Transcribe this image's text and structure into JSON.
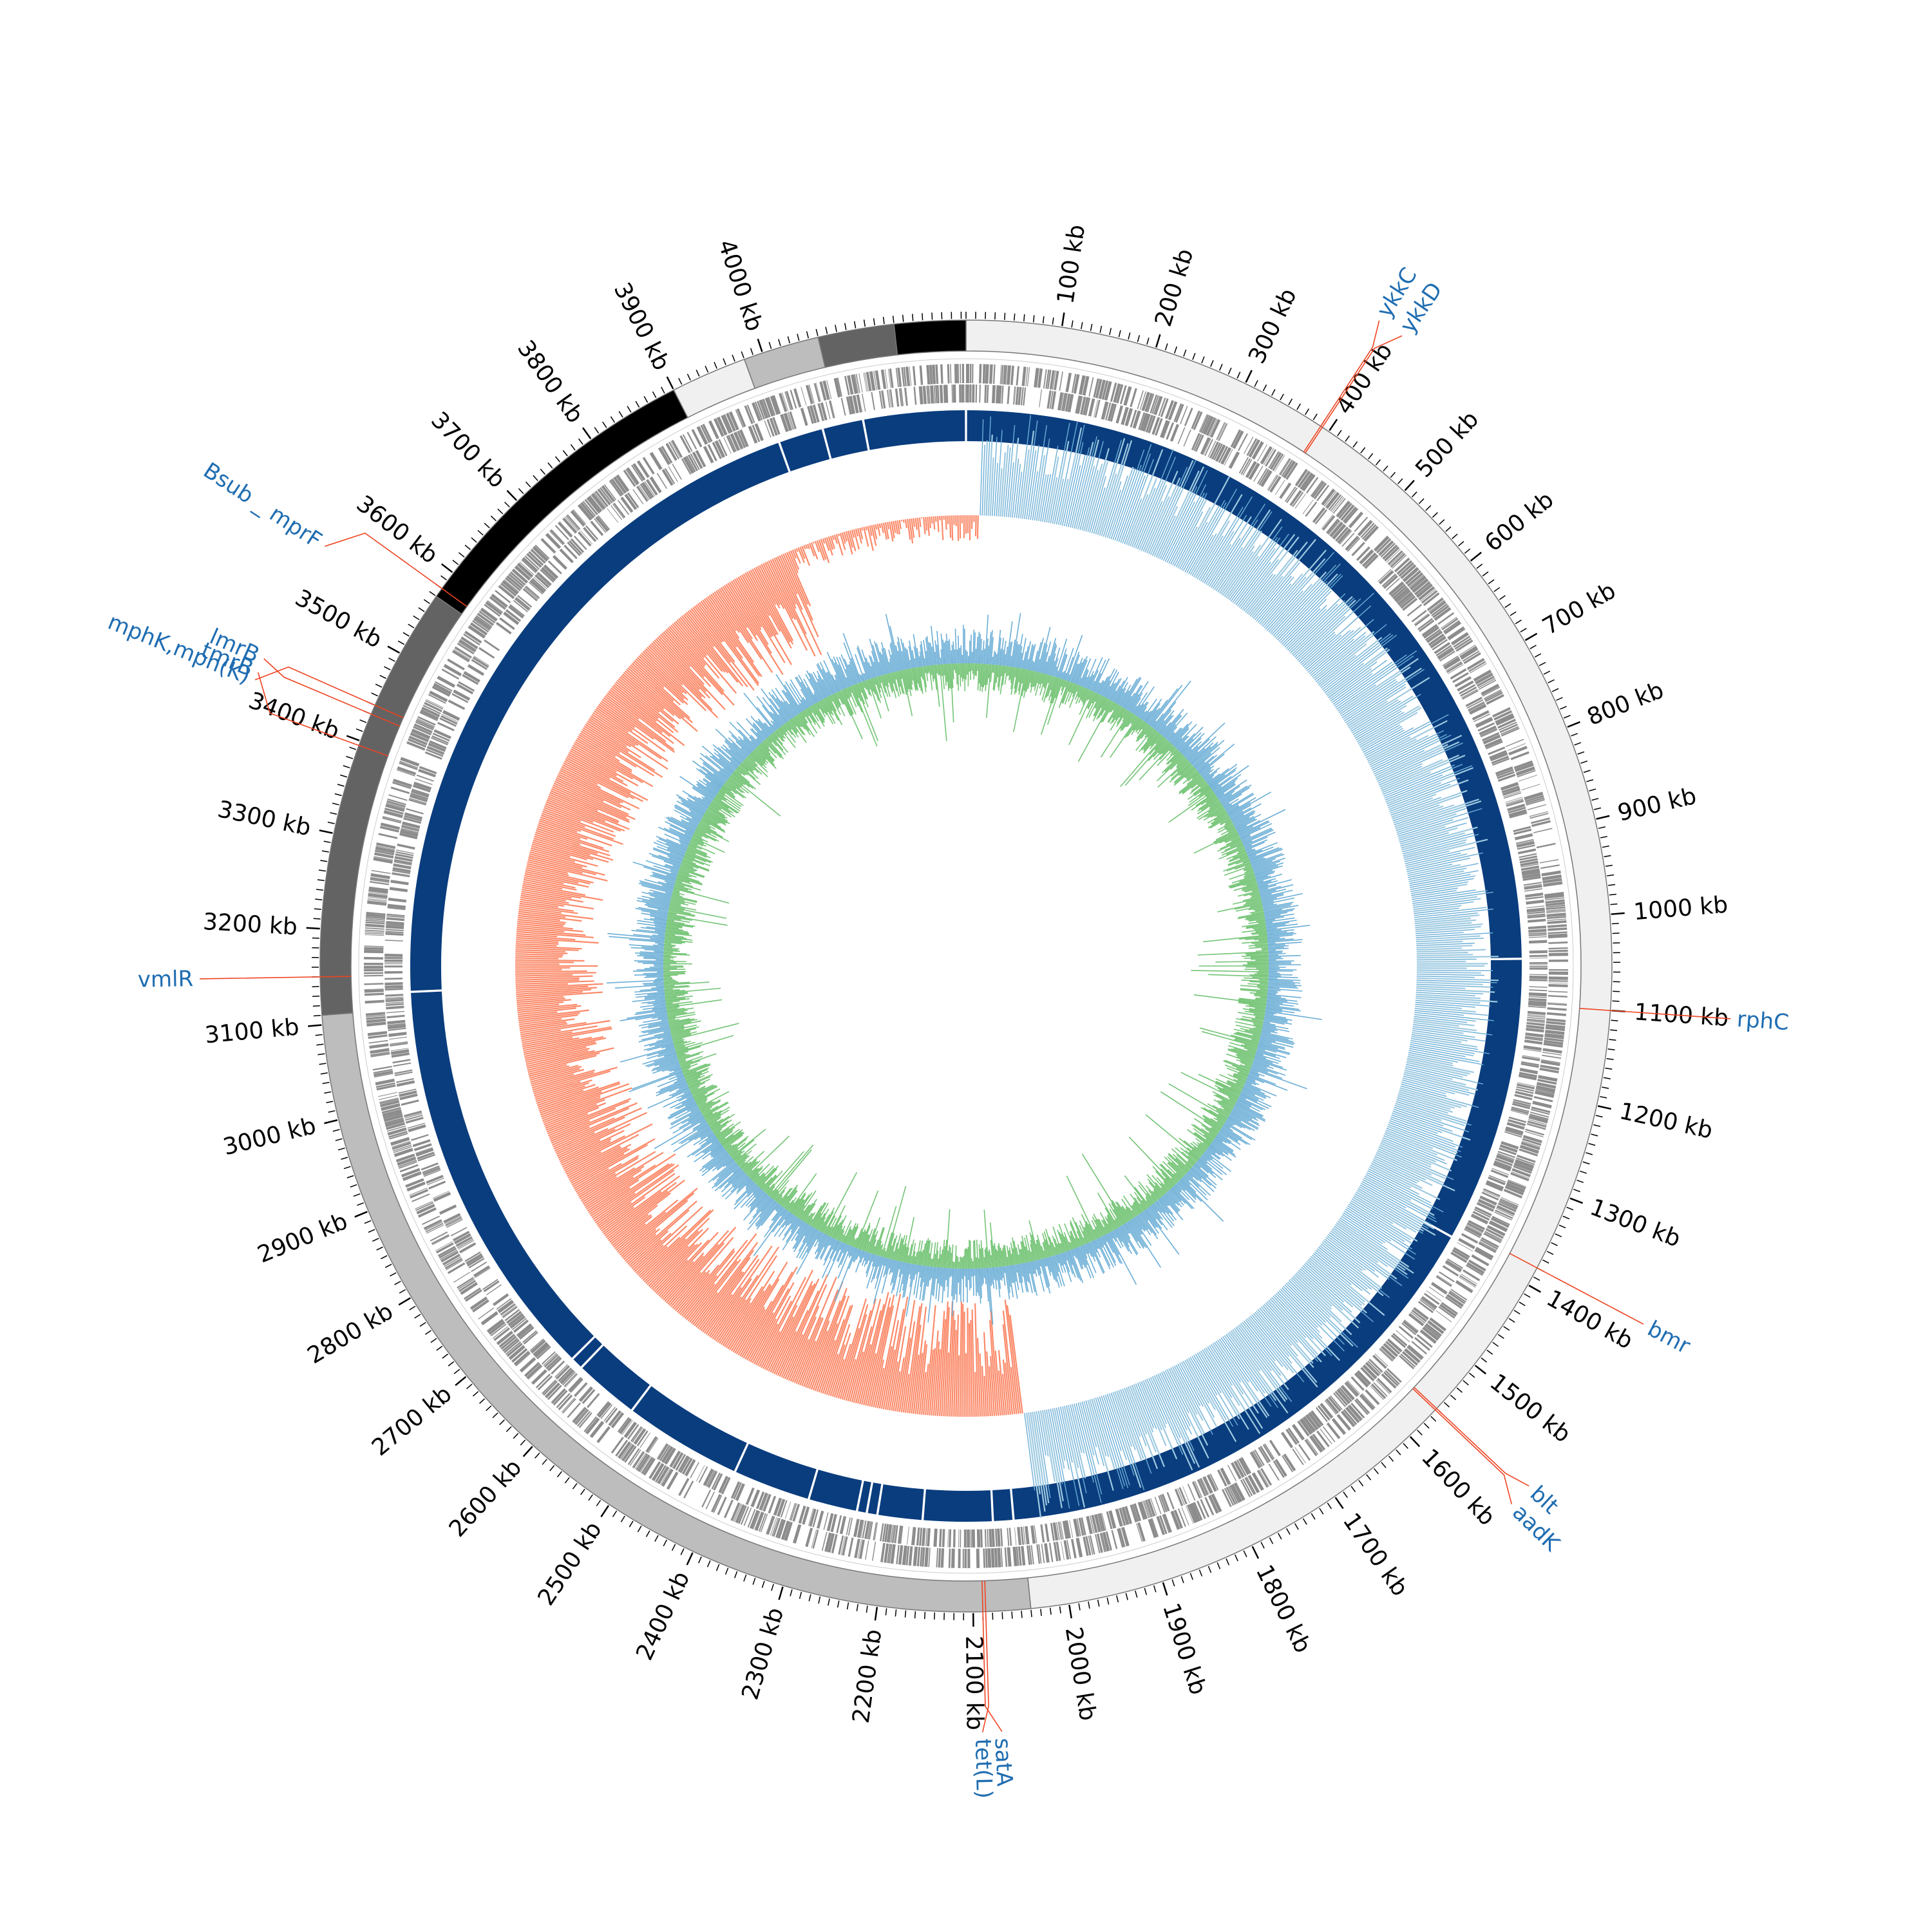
{
  "genome": {
    "length_kb": 4215,
    "unit": "kb"
  },
  "colors": {
    "gene_label": "#1f6db1",
    "leader": "#ee4422",
    "cds_track": "#8c8c8c",
    "contig_track": "#0a3d7e",
    "gc_skew_positive": "#9ecae1",
    "gc_skew_accent": "#6baed6",
    "gc_skew_negative": "#fb8a6a",
    "gc_content_outer": "#6baed6",
    "gc_content_inner": "#74c476",
    "tick": "#000000",
    "ring_outline": "#777777"
  },
  "scale": {
    "ticks": [
      {
        "pos": 100,
        "label": "100 kb"
      },
      {
        "pos": 200,
        "label": "200 kb"
      },
      {
        "pos": 300,
        "label": "300 kb"
      },
      {
        "pos": 400,
        "label": "400 kb"
      },
      {
        "pos": 500,
        "label": "500 kb"
      },
      {
        "pos": 600,
        "label": "600 kb"
      },
      {
        "pos": 700,
        "label": "700 kb"
      },
      {
        "pos": 800,
        "label": "800 kb"
      },
      {
        "pos": 900,
        "label": "900 kb"
      },
      {
        "pos": 1000,
        "label": "1000 kb"
      },
      {
        "pos": 1100,
        "label": "1100 kb"
      },
      {
        "pos": 1200,
        "label": "1200 kb"
      },
      {
        "pos": 1300,
        "label": "1300 kb"
      },
      {
        "pos": 1400,
        "label": "1400 kb"
      },
      {
        "pos": 1500,
        "label": "1500 kb"
      },
      {
        "pos": 1600,
        "label": "1600 kb"
      },
      {
        "pos": 1700,
        "label": "1700 kb"
      },
      {
        "pos": 1800,
        "label": "1800 kb"
      },
      {
        "pos": 1900,
        "label": "1900 kb"
      },
      {
        "pos": 2000,
        "label": "2000 kb"
      },
      {
        "pos": 2100,
        "label": "2100 kb"
      },
      {
        "pos": 2200,
        "label": "2200 kb"
      },
      {
        "pos": 2300,
        "label": "2300 kb"
      },
      {
        "pos": 2400,
        "label": "2400 kb"
      },
      {
        "pos": 2500,
        "label": "2500 kb"
      },
      {
        "pos": 2600,
        "label": "2600 kb"
      },
      {
        "pos": 2700,
        "label": "2700 kb"
      },
      {
        "pos": 2800,
        "label": "2800 kb"
      },
      {
        "pos": 2900,
        "label": "2900 kb"
      },
      {
        "pos": 3000,
        "label": "3000 kb"
      },
      {
        "pos": 3100,
        "label": "3100 kb"
      },
      {
        "pos": 3200,
        "label": "3200 kb"
      },
      {
        "pos": 3300,
        "label": "3300 kb"
      },
      {
        "pos": 3400,
        "label": "3400 kb"
      },
      {
        "pos": 3500,
        "label": "3500 kb"
      },
      {
        "pos": 3600,
        "label": "3600 kb"
      },
      {
        "pos": 3700,
        "label": "3700 kb"
      },
      {
        "pos": 3800,
        "label": "3800 kb"
      },
      {
        "pos": 3900,
        "label": "3900 kb"
      },
      {
        "pos": 4000,
        "label": "4000 kb"
      }
    ]
  },
  "segments": [
    {
      "start": 0,
      "end": 2040,
      "color": "#f0f0f0"
    },
    {
      "start": 2040,
      "end": 3110,
      "color": "#bdbdbd"
    },
    {
      "start": 3110,
      "end": 3570,
      "color": "#636363"
    },
    {
      "start": 3570,
      "end": 3900,
      "color": "#000000"
    },
    {
      "start": 3900,
      "end": 3980,
      "color": "#f0f0f0"
    },
    {
      "start": 3980,
      "end": 4060,
      "color": "#bdbdbd"
    },
    {
      "start": 4060,
      "end": 4140,
      "color": "#636363"
    },
    {
      "start": 4140,
      "end": 4215,
      "color": "#000000"
    }
  ],
  "contig_gaps": [
    3985,
    4040,
    4090,
    1045,
    1395,
    2050,
    2075,
    2160,
    2215,
    2228,
    2240,
    2300,
    2395,
    2540,
    2620,
    2635,
    3130
  ],
  "genes": [
    {
      "label": "ykkC",
      "pos": 390
    },
    {
      "label": "ykkD",
      "pos": 392
    },
    {
      "label": "rphC",
      "pos": 1100
    },
    {
      "label": "bmr",
      "pos": 1380
    },
    {
      "label": "blt",
      "pos": 1560
    },
    {
      "label": "aadK",
      "pos": 1562
    },
    {
      "label": "tet(L)",
      "pos": 2087
    },
    {
      "label": "satA",
      "pos": 2090
    },
    {
      "label": "vmlR",
      "pos": 3150
    },
    {
      "label": "tmrB",
      "pos": 3395
    },
    {
      "label": "lmrB",
      "pos": 3430
    },
    {
      "label": "mphK,mph(K)",
      "pos": 3440
    },
    {
      "label": "Bsub _ mprF",
      "pos": 3580
    }
  ]
}
